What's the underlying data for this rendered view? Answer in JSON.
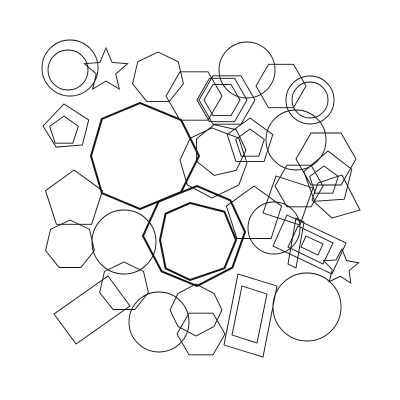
{
  "palette": {
    "background": "#ffffff",
    "stroke": "#111111"
  },
  "shape_kinds": [
    "circle",
    "star",
    "pentagon",
    "hexagon",
    "heptagon",
    "octagon",
    "rectangle"
  ],
  "emphasized_shapes": [
    "large-octagon-upper-left",
    "large-octagon-center",
    "inner-octagon-center"
  ]
}
